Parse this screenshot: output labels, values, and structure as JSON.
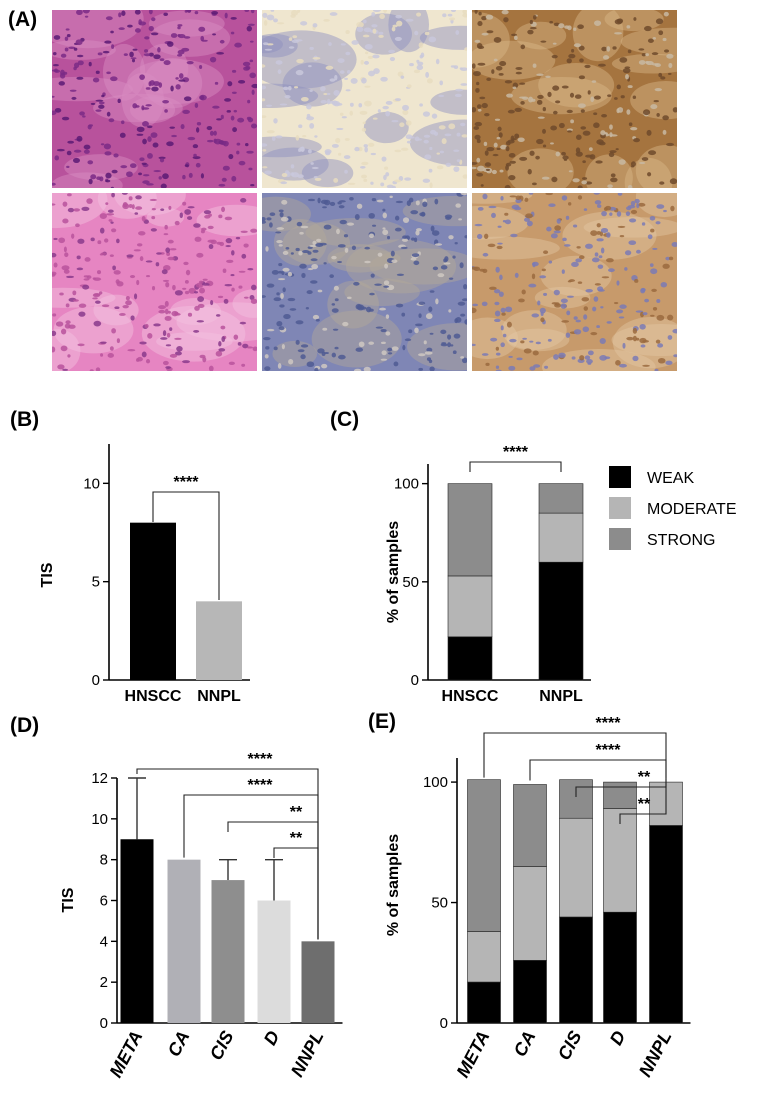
{
  "panel_labels": {
    "a": "(A)",
    "b": "(B)",
    "c": "(C)",
    "d": "(D)",
    "e": "(E)"
  },
  "micrographs": [
    {
      "stain": "H&E",
      "colors": [
        "#b8529c",
        "#7a2a86",
        "#d98fc4",
        "#5a1a74"
      ]
    },
    {
      "stain": "IHC weak",
      "colors": [
        "#efe6cf",
        "#c9c8dc",
        "#8c8fbf",
        "#e8dcc0"
      ]
    },
    {
      "stain": "IHC strong",
      "colors": [
        "#a5743f",
        "#6e4a2b",
        "#d9b78a",
        "#c8b9a2"
      ]
    },
    {
      "stain": "H&E",
      "colors": [
        "#e685c2",
        "#b8529c",
        "#f4c4df",
        "#8a3a8c"
      ]
    },
    {
      "stain": "IHC moderate",
      "colors": [
        "#7f86b5",
        "#4f5a93",
        "#b4a99a",
        "#cfc8c2"
      ]
    },
    {
      "stain": "IHC strong",
      "colors": [
        "#c79a6b",
        "#7a7ab5",
        "#e2c7a4",
        "#9a6a3e"
      ]
    }
  ],
  "legend": {
    "items": [
      {
        "label": "WEAK",
        "color": "#000000"
      },
      {
        "label": "MODERATE",
        "color": "#b5b5b5"
      },
      {
        "label": "STRONG",
        "color": "#8c8c8c"
      }
    ]
  },
  "chart_data": [
    {
      "id": "B",
      "type": "bar",
      "categories": [
        "HNSCC",
        "NNPL"
      ],
      "values": [
        8,
        4
      ],
      "colors": [
        "#000000",
        "#b7b7b7"
      ],
      "ylabel": "TIS",
      "ylim": [
        0,
        12
      ],
      "yticks": [
        0,
        5,
        10
      ],
      "significance": [
        {
          "from": "HNSCC",
          "to": "NNPL",
          "label": "****"
        }
      ]
    },
    {
      "id": "C",
      "type": "bar",
      "stacked": true,
      "categories": [
        "HNSCC",
        "NNPL"
      ],
      "series": [
        {
          "name": "WEAK",
          "values": [
            22,
            60
          ],
          "color": "#000000"
        },
        {
          "name": "MODERATE",
          "values": [
            31,
            25
          ],
          "color": "#b5b5b5"
        },
        {
          "name": "STRONG",
          "values": [
            47,
            15
          ],
          "color": "#8c8c8c"
        }
      ],
      "ylabel": "% of samples",
      "ylim": [
        0,
        110
      ],
      "yticks": [
        0,
        50,
        100
      ],
      "significance": [
        {
          "from": "HNSCC",
          "to": "NNPL",
          "label": "****"
        }
      ]
    },
    {
      "id": "D",
      "type": "bar",
      "categories": [
        "META",
        "CA",
        "CIS",
        "D",
        "NNPL"
      ],
      "values": [
        9,
        8,
        7,
        6,
        4
      ],
      "errors": [
        3,
        0,
        1,
        2,
        0
      ],
      "colors": [
        "#000000",
        "#b0b0b6",
        "#8e8e8e",
        "#dcdcdc",
        "#6e6e6e"
      ],
      "ylabel": "TIS",
      "ylim": [
        0,
        12
      ],
      "yticks": [
        0,
        2,
        4,
        6,
        8,
        10,
        12
      ],
      "significance": [
        {
          "from": "META",
          "to": "NNPL",
          "label": "****"
        },
        {
          "from": "CA",
          "to": "NNPL",
          "label": "****"
        },
        {
          "from": "CIS",
          "to": "NNPL",
          "label": "**"
        },
        {
          "from": "D",
          "to": "NNPL",
          "label": "**"
        }
      ]
    },
    {
      "id": "E",
      "type": "bar",
      "stacked": true,
      "categories": [
        "META",
        "CA",
        "CIS",
        "D",
        "NNPL"
      ],
      "series": [
        {
          "name": "WEAK",
          "values": [
            17,
            26,
            44,
            46,
            82
          ],
          "color": "#000000"
        },
        {
          "name": "MODERATE",
          "values": [
            21,
            39,
            41,
            43,
            18
          ],
          "color": "#b5b5b5"
        },
        {
          "name": "STRONG",
          "values": [
            63,
            34,
            16,
            11,
            0
          ],
          "color": "#8c8c8c"
        }
      ],
      "ylabel": "% of samples",
      "ylim": [
        0,
        110
      ],
      "yticks": [
        0,
        50,
        100
      ],
      "significance": [
        {
          "from": "META",
          "to": "NNPL",
          "label": "****"
        },
        {
          "from": "CA",
          "to": "NNPL",
          "label": "****"
        },
        {
          "from": "CIS",
          "to": "NNPL",
          "label": "**"
        },
        {
          "from": "D",
          "to": "NNPL",
          "label": "**"
        }
      ]
    }
  ]
}
